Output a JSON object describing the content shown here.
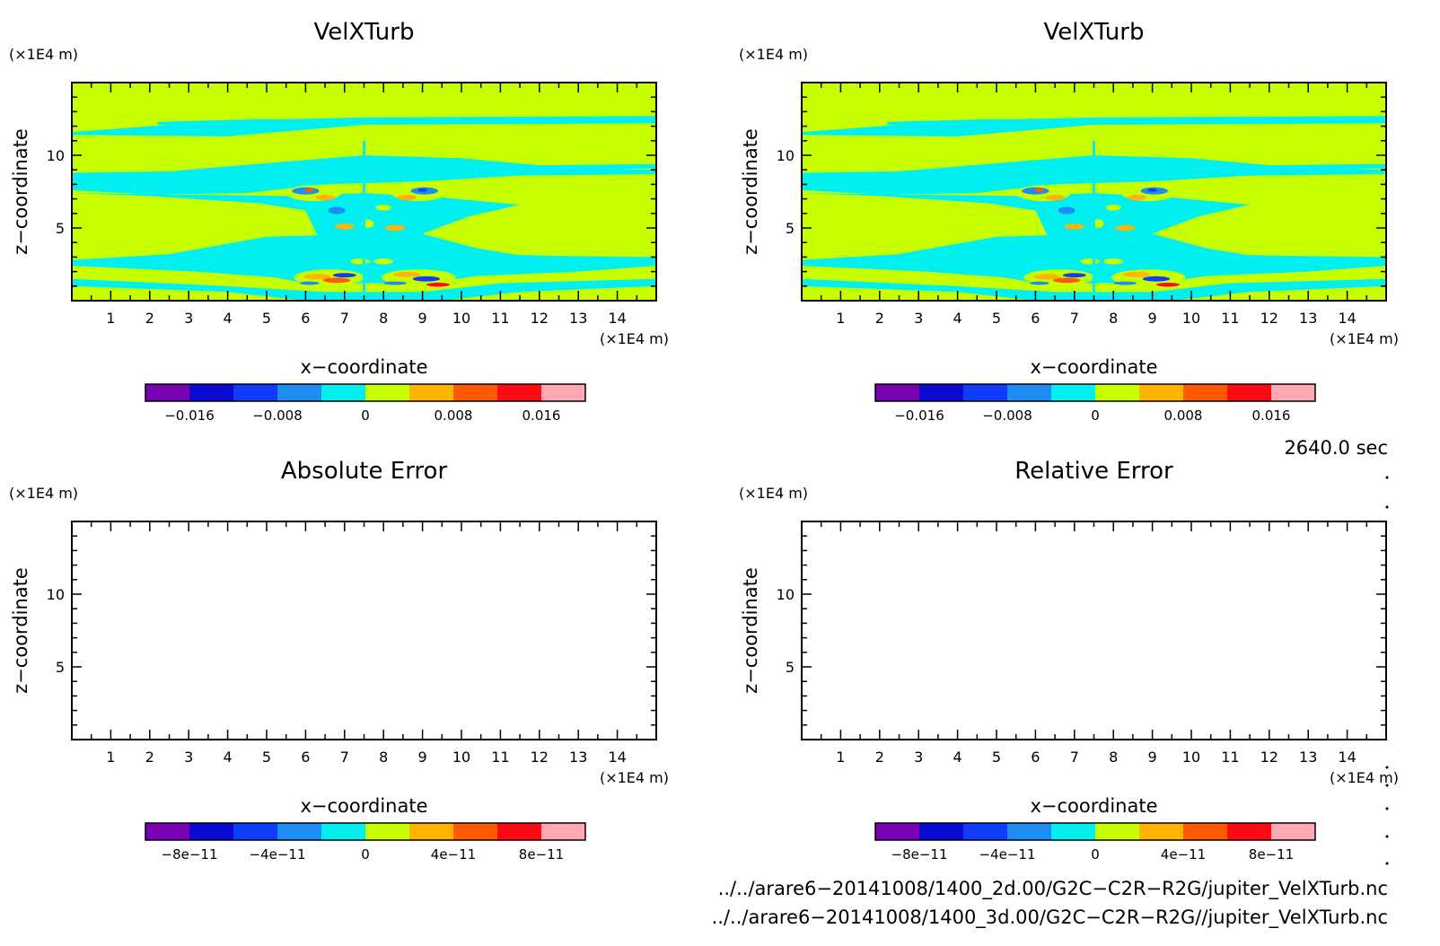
{
  "chart_data": [
    {
      "type": "heatmap",
      "title": "VelXTurb",
      "xlabel": "x−coordinate",
      "ylabel": "z−coordinate",
      "x_unit": "(×1E4 m)",
      "y_unit": "(×1E4 m)",
      "xlim": [
        0,
        15
      ],
      "ylim": [
        0,
        15
      ],
      "x_ticks": [
        "1",
        "2",
        "3",
        "4",
        "5",
        "6",
        "7",
        "8",
        "9",
        "10",
        "11",
        "12",
        "13",
        "14"
      ],
      "y_ticks": [
        "5",
        "10"
      ],
      "colorbar_ticks": [
        "−0.016",
        "−0.008",
        "0",
        "0.008",
        "0.016"
      ],
      "colorbar_range": [
        -0.02,
        0.02
      ],
      "field": "mostly near 0 (yellow-green, cyan); small-amplitude turbulence structures of about ±0.016 concentrated around x = 5–9, z = 1–9"
    },
    {
      "type": "heatmap",
      "title": "VelXTurb",
      "xlabel": "x−coordinate",
      "ylabel": "z−coordinate",
      "x_unit": "(×1E4 m)",
      "y_unit": "(×1E4 m)",
      "xlim": [
        0,
        15
      ],
      "ylim": [
        0,
        15
      ],
      "x_ticks": [
        "1",
        "2",
        "3",
        "4",
        "5",
        "6",
        "7",
        "8",
        "9",
        "10",
        "11",
        "12",
        "13",
        "14"
      ],
      "y_ticks": [
        "5",
        "10"
      ],
      "colorbar_ticks": [
        "−0.016",
        "−0.008",
        "0",
        "0.008",
        "0.016"
      ],
      "colorbar_range": [
        -0.02,
        0.02
      ],
      "field": "identical to the first panel"
    },
    {
      "type": "heatmap",
      "title": "Absolute Error",
      "xlabel": "x−coordinate",
      "ylabel": "z−coordinate",
      "x_unit": "(×1E4 m)",
      "y_unit": "(×1E4 m)",
      "xlim": [
        0,
        15
      ],
      "ylim": [
        0,
        15
      ],
      "x_ticks": [
        "1",
        "2",
        "3",
        "4",
        "5",
        "6",
        "7",
        "8",
        "9",
        "10",
        "11",
        "12",
        "13",
        "14"
      ],
      "y_ticks": [
        "5",
        "10"
      ],
      "colorbar_ticks": [
        "−8e−11",
        "−4e−11",
        "0",
        "4e−11",
        "8e−11"
      ],
      "colorbar_range": [
        -1e-10,
        1e-10
      ],
      "field": "blank (no error)"
    },
    {
      "type": "heatmap",
      "title": "Relative Error",
      "xlabel": "x−coordinate",
      "ylabel": "z−coordinate",
      "x_unit": "(×1E4 m)",
      "y_unit": "(×1E4 m)",
      "xlim": [
        0,
        15
      ],
      "ylim": [
        0,
        15
      ],
      "x_ticks": [
        "1",
        "2",
        "3",
        "4",
        "5",
        "6",
        "7",
        "8",
        "9",
        "10",
        "11",
        "12",
        "13",
        "14"
      ],
      "y_ticks": [
        "5",
        "10"
      ],
      "colorbar_ticks": [
        "−8e−11",
        "−4e−11",
        "0",
        "4e−11",
        "8e−11"
      ],
      "colorbar_range": [
        -1e-10,
        1e-10
      ],
      "field": "blank (no error)"
    }
  ],
  "colorbar_colors": [
    "#7a00b4",
    "#0a0ad2",
    "#0f3cff",
    "#1e8cf5",
    "#00f0f0",
    "#c8ff00",
    "#ffb400",
    "#ff5a00",
    "#ff0a14",
    "#ffa8b4"
  ],
  "field_colors": {
    "background": "#c8ff00",
    "cyan": "#00f0f0",
    "light_blue": "#1e8cf5",
    "blue": "#0f3cff",
    "orange": "#ffb400",
    "red_orange": "#ff5a00",
    "red": "#ff0a14"
  },
  "time_label": "2640.0 sec",
  "file_paths": [
    "../../arare6−20141008/1400_2d.00/G2C−C2R−R2G/jupiter_VelXTurb.nc",
    "../../arare6−20141008/1400_3d.00/G2C−C2R−R2G//jupiter_VelXTurb.nc"
  ]
}
